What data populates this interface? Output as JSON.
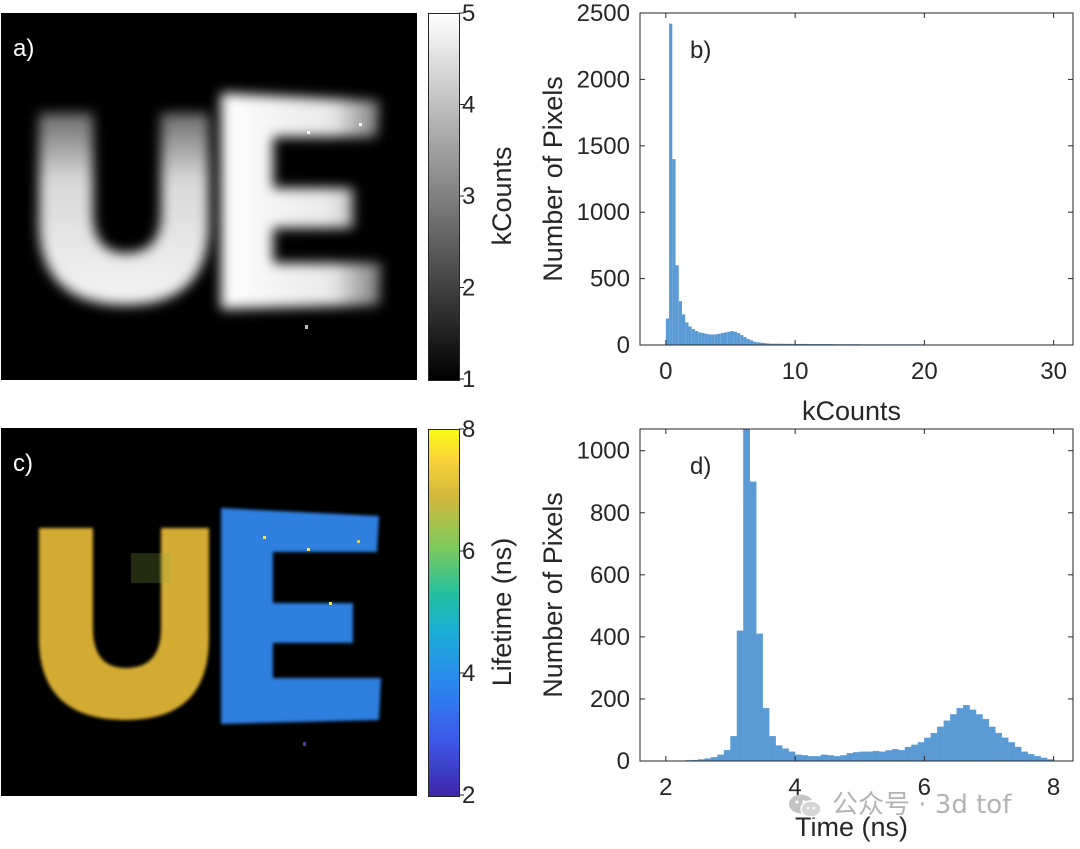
{
  "panels": {
    "a": {
      "label": "a)",
      "colorbar": {
        "title": "kCounts",
        "ticks": [
          "5",
          "4",
          "3",
          "2",
          "1"
        ],
        "range": [
          1,
          5
        ],
        "colormap": "gray"
      }
    },
    "c": {
      "label": "c)",
      "colorbar": {
        "title": "Lifetime (ns)",
        "ticks": [
          "8",
          "6",
          "4",
          "2"
        ],
        "range": [
          2,
          8
        ],
        "colormap": "parula"
      }
    }
  },
  "colors": {
    "bar": "#5b9bd5",
    "image_background": "#000000",
    "intensity_letters": "#f0f0f0",
    "lifetime_U": "#d9b431",
    "lifetime_E": "#2f7fe0"
  },
  "chart_data": [
    {
      "id": "b",
      "type": "bar",
      "annotation": "b)",
      "xlabel": "kCounts",
      "ylabel": "Number of Pixels",
      "xlim": [
        -2,
        31.5
      ],
      "ylim": [
        0,
        2500
      ],
      "xticks": [
        0,
        10,
        20,
        30
      ],
      "yticks": [
        0,
        500,
        1000,
        1500,
        2000,
        2500
      ],
      "bin_width": 0.25,
      "x": [
        0.125,
        0.375,
        0.625,
        0.875,
        1.125,
        1.375,
        1.625,
        1.875,
        2.125,
        2.375,
        2.625,
        2.875,
        3.125,
        3.375,
        3.625,
        3.875,
        4.125,
        4.375,
        4.625,
        4.875,
        5.125,
        5.375,
        5.625,
        5.875,
        6.125,
        6.375,
        6.625,
        6.875,
        7.125,
        7.375,
        7.625,
        7.875,
        8.5,
        9.5,
        10.5,
        11.5,
        12.5,
        13.5,
        14.5,
        15.5,
        16.5,
        17.5,
        18.5,
        19.5,
        20.5,
        21.5,
        22.5,
        23.5,
        24.5,
        25.5,
        26.5,
        27.5,
        28.5,
        29.5,
        30.5
      ],
      "values": [
        200,
        2420,
        1400,
        600,
        330,
        230,
        170,
        140,
        120,
        105,
        95,
        90,
        85,
        80,
        80,
        80,
        85,
        90,
        95,
        100,
        105,
        100,
        90,
        75,
        60,
        45,
        35,
        25,
        20,
        18,
        15,
        12,
        10,
        9,
        8,
        7,
        7,
        6,
        6,
        5,
        5,
        5,
        5,
        5,
        4,
        4,
        4,
        4,
        4,
        4,
        3,
        3,
        3,
        3,
        3
      ]
    },
    {
      "id": "d",
      "type": "bar",
      "annotation": "d)",
      "xlabel": "Time (ns)",
      "ylabel": "Number of Pixels",
      "xlim": [
        1.6,
        8.3
      ],
      "ylim": [
        0,
        1070
      ],
      "xticks": [
        2,
        4,
        6,
        8
      ],
      "yticks": [
        0,
        200,
        400,
        600,
        800,
        1000
      ],
      "bin_width": 0.1,
      "x": [
        2.05,
        2.15,
        2.25,
        2.35,
        2.45,
        2.55,
        2.65,
        2.75,
        2.85,
        2.95,
        3.05,
        3.15,
        3.25,
        3.35,
        3.45,
        3.55,
        3.65,
        3.75,
        3.85,
        3.95,
        4.05,
        4.15,
        4.25,
        4.35,
        4.45,
        4.55,
        4.65,
        4.75,
        4.85,
        4.95,
        5.05,
        5.15,
        5.25,
        5.35,
        5.45,
        5.55,
        5.65,
        5.75,
        5.85,
        5.95,
        6.05,
        6.15,
        6.25,
        6.35,
        6.45,
        6.55,
        6.65,
        6.75,
        6.85,
        6.95,
        7.05,
        7.15,
        7.25,
        7.35,
        7.45,
        7.55,
        7.65,
        7.75,
        7.85,
        7.95
      ],
      "values": [
        0,
        0,
        0,
        2,
        3,
        5,
        8,
        12,
        20,
        35,
        80,
        420,
        1080,
        900,
        410,
        170,
        80,
        50,
        40,
        30,
        20,
        18,
        15,
        15,
        20,
        18,
        15,
        18,
        25,
        28,
        30,
        30,
        32,
        30,
        34,
        38,
        35,
        45,
        52,
        60,
        75,
        90,
        110,
        130,
        150,
        170,
        180,
        165,
        150,
        135,
        110,
        90,
        75,
        60,
        45,
        30,
        22,
        15,
        10,
        5
      ]
    }
  ],
  "watermark": {
    "text": "公众号 · 3d tof",
    "icon": "wechat-icon"
  }
}
